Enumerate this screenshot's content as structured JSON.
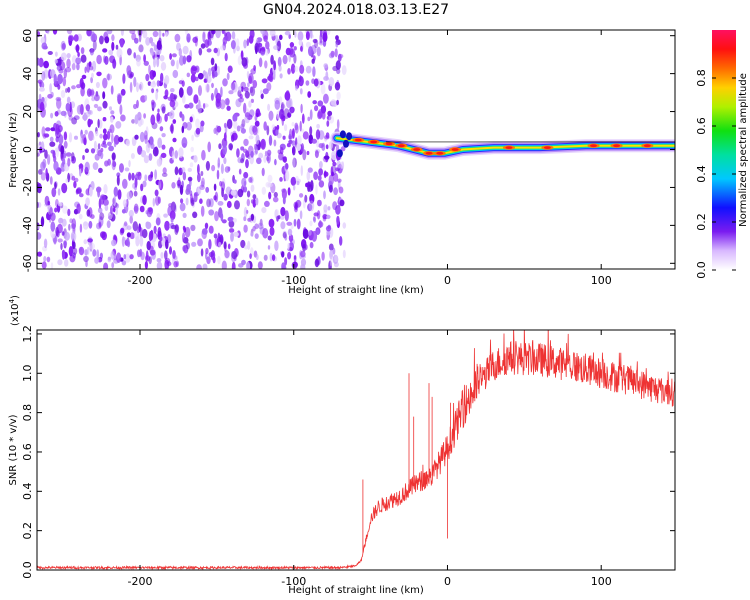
{
  "title": "GN04.2024.018.03.13.E27",
  "chart_data": [
    {
      "type": "heatmap",
      "name": "spectrogram",
      "xlabel": "Height of straight line (km)",
      "ylabel": "Frequency (Hz)",
      "xlim": [
        -267,
        148
      ],
      "ylim": [
        -63,
        63
      ],
      "xticks": [
        -200,
        -100,
        0,
        100
      ],
      "xtick_labels": [
        "-200",
        "-100",
        "0",
        "100"
      ],
      "yticks": [
        -60,
        -40,
        -20,
        0,
        20,
        40,
        60
      ],
      "ytick_labels": [
        "-60",
        "-40",
        "-20",
        "0",
        "20",
        "40",
        "60"
      ],
      "noise_region_x": [
        -267,
        -67
      ],
      "signal_track": {
        "x": [
          -72,
          -62,
          -52,
          -42,
          -32,
          -22,
          -12,
          -2,
          10,
          30,
          60,
          90,
          120,
          148
        ],
        "y": [
          6,
          5,
          4,
          3,
          2,
          0,
          -2,
          -2,
          0,
          1,
          1,
          2,
          2,
          2
        ]
      },
      "colorbar": {
        "label": "Normalized spectral amplitude",
        "range": [
          0.0,
          1.0
        ],
        "ticks": [
          0.0,
          0.2,
          0.4,
          0.6,
          0.8
        ],
        "tick_labels": [
          "0.0",
          "0.2",
          "0.4",
          "0.6",
          "0.8"
        ]
      }
    },
    {
      "type": "line",
      "name": "snr",
      "xlabel": "Height of straight line (km)",
      "ylabel": "SNR (10 * v/v)",
      "multiplier_label": "(x10",
      "multiplier_exp": "4",
      "multiplier_close": ")",
      "xlim": [
        -267,
        148
      ],
      "ylim": [
        0.0,
        1.22
      ],
      "xticks": [
        -200,
        -100,
        0,
        100
      ],
      "xtick_labels": [
        "-200",
        "-100",
        "0",
        "100"
      ],
      "yticks": [
        0.0,
        0.2,
        0.4,
        0.6,
        0.8,
        1.0,
        1.2
      ],
      "ytick_labels": [
        "0.0",
        "0.2",
        "0.4",
        "0.6",
        "0.8",
        "1.0",
        "1.2"
      ],
      "color": "#ee3333",
      "envelope": {
        "x": [
          -267,
          -70,
          -60,
          -56,
          -50,
          -45,
          -40,
          -30,
          -20,
          -10,
          -5,
          0,
          10,
          20,
          30,
          40,
          60,
          80,
          100,
          120,
          135,
          148
        ],
        "y": [
          0.012,
          0.012,
          0.02,
          0.05,
          0.26,
          0.32,
          0.34,
          0.38,
          0.44,
          0.48,
          0.55,
          0.62,
          0.82,
          0.95,
          1.04,
          1.08,
          1.07,
          1.04,
          1.0,
          0.96,
          0.92,
          0.9
        ]
      },
      "spikes": [
        {
          "x": -55,
          "y": 0.46
        },
        {
          "x": -25,
          "y": 1.0
        },
        {
          "x": -22,
          "y": 0.78
        },
        {
          "x": -12,
          "y": 0.95
        },
        {
          "x": -10,
          "y": 0.88
        },
        {
          "x": 0,
          "y": 0.16
        },
        {
          "x": 2,
          "y": 0.85
        }
      ]
    }
  ]
}
